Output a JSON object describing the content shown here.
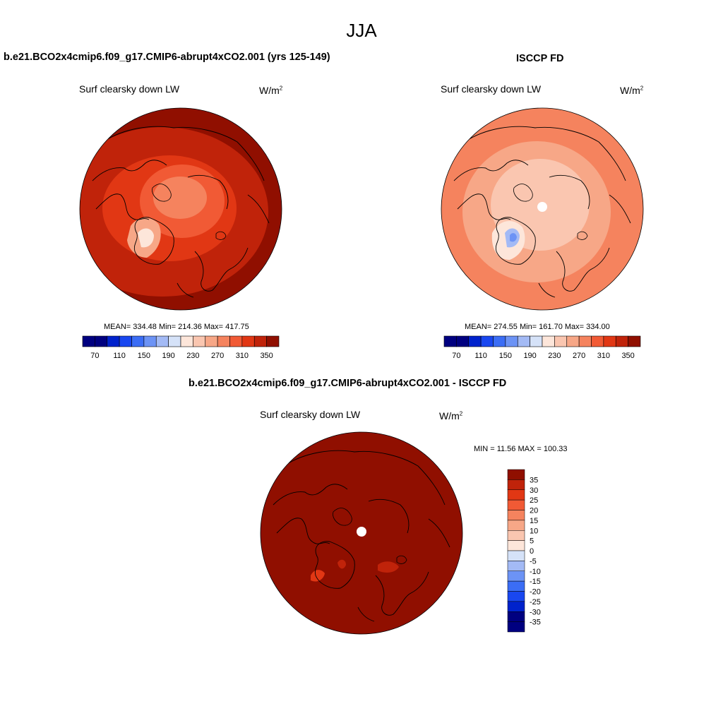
{
  "main_title": "JJA",
  "colors": {
    "palette_blue_to_red": [
      "#000080",
      "#0022cc",
      "#1947f0",
      "#3b6df5",
      "#6c93f5",
      "#a3baf5",
      "#d5e2f8",
      "#fde6da",
      "#fac6b0",
      "#f7a787",
      "#f5835e",
      "#f15a35",
      "#e13714",
      "#c0230a",
      "#900f00"
    ],
    "land_outline": "#000000",
    "polar_hole": "#ffffff"
  },
  "panels": {
    "model": {
      "title": "b.e21.BCO2x4cmip6.f09_g17.CMIP6-abrupt4xCO2.001 (yrs 125-149)",
      "variable": "Surf clearsky down LW",
      "units_base": "W/m",
      "units_exp": "2",
      "stats": "MEAN= 334.48  Min= 214.36  Max= 417.75",
      "colorbar_ticks": [
        "70",
        "110",
        "150",
        "190",
        "230",
        "270",
        "310",
        "350"
      ]
    },
    "obs": {
      "title": "ISCCP FD",
      "variable": "Surf clearsky down LW",
      "units_base": "W/m",
      "units_exp": "2",
      "stats": "MEAN= 274.55  Min= 161.70  Max= 334.00",
      "colorbar_ticks": [
        "70",
        "110",
        "150",
        "190",
        "230",
        "270",
        "310",
        "350"
      ]
    },
    "diff": {
      "title": "b.e21.BCO2x4cmip6.f09_g17.CMIP6-abrupt4xCO2.001 - ISCCP FD",
      "variable": "Surf clearsky down LW",
      "units_base": "W/m",
      "units_exp": "2",
      "stats": "MIN =  11.56 MAX = 100.33",
      "colorbar_ticks": [
        "35",
        "30",
        "25",
        "20",
        "15",
        "10",
        "5",
        "0",
        "-5",
        "-10",
        "-15",
        "-20",
        "-25",
        "-30",
        "-35"
      ]
    }
  },
  "chart_data": [
    {
      "type": "heatmap",
      "projection": "north polar stereographic",
      "title": "b.e21.BCO2x4cmip6.f09_g17.CMIP6-abrupt4xCO2.001 (yrs 125-149)",
      "variable": "Surf clearsky down LW",
      "units": "W/m2",
      "mean": 334.48,
      "min": 214.36,
      "max": 417.75,
      "contour_levels": [
        50,
        70,
        90,
        110,
        130,
        150,
        170,
        190,
        210,
        230,
        250,
        270,
        290,
        310,
        330,
        350
      ],
      "colorbar_labels": [
        70,
        110,
        150,
        190,
        230,
        270,
        310,
        350
      ]
    },
    {
      "type": "heatmap",
      "projection": "north polar stereographic",
      "title": "ISCCP FD",
      "variable": "Surf clearsky down LW",
      "units": "W/m2",
      "mean": 274.55,
      "min": 161.7,
      "max": 334.0,
      "contour_levels": [
        50,
        70,
        90,
        110,
        130,
        150,
        170,
        190,
        210,
        230,
        250,
        270,
        290,
        310,
        330,
        350
      ],
      "colorbar_labels": [
        70,
        110,
        150,
        190,
        230,
        270,
        310,
        350
      ]
    },
    {
      "type": "heatmap",
      "projection": "north polar stereographic",
      "title": "b.e21.BCO2x4cmip6.f09_g17.CMIP6-abrupt4xCO2.001 - ISCCP FD",
      "variable": "Surf clearsky down LW",
      "units": "W/m2",
      "min": 11.56,
      "max": 100.33,
      "contour_levels": [
        -35,
        -30,
        -25,
        -20,
        -15,
        -10,
        -5,
        0,
        5,
        10,
        15,
        20,
        25,
        30,
        35
      ],
      "colorbar_labels": [
        35,
        30,
        25,
        20,
        15,
        10,
        5,
        0,
        -5,
        -10,
        -15,
        -20,
        -25,
        -30,
        -35
      ]
    }
  ]
}
